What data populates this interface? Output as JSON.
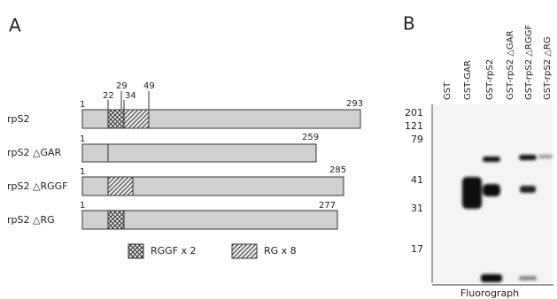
{
  "panel_a": {
    "label": "A",
    "constructs": [
      {
        "name": "rpS2",
        "start": 1,
        "end": 293
      },
      {
        "name": "rpS2 △GAR",
        "start": 1,
        "end": 259
      },
      {
        "name": "rpS2 △RGGF",
        "start": 1,
        "end": 285
      },
      {
        "name": "rpS2 △RG",
        "start": 1,
        "end": 277
      }
    ],
    "positions": [
      22,
      29,
      34,
      49
    ],
    "legend": [
      "RGGF x 2",
      "RG x 8"
    ]
  },
  "panel_b": {
    "label": "B",
    "lanes": [
      "GST",
      "GST-GAR",
      "GST-rpS2",
      "GST-rpS2 △GAR",
      "GST-rpS2 △RGGF",
      "GST-rpS2 △RG"
    ],
    "markers": [
      201,
      121,
      79,
      41,
      31,
      17
    ],
    "caption": "Fluorograph"
  }
}
